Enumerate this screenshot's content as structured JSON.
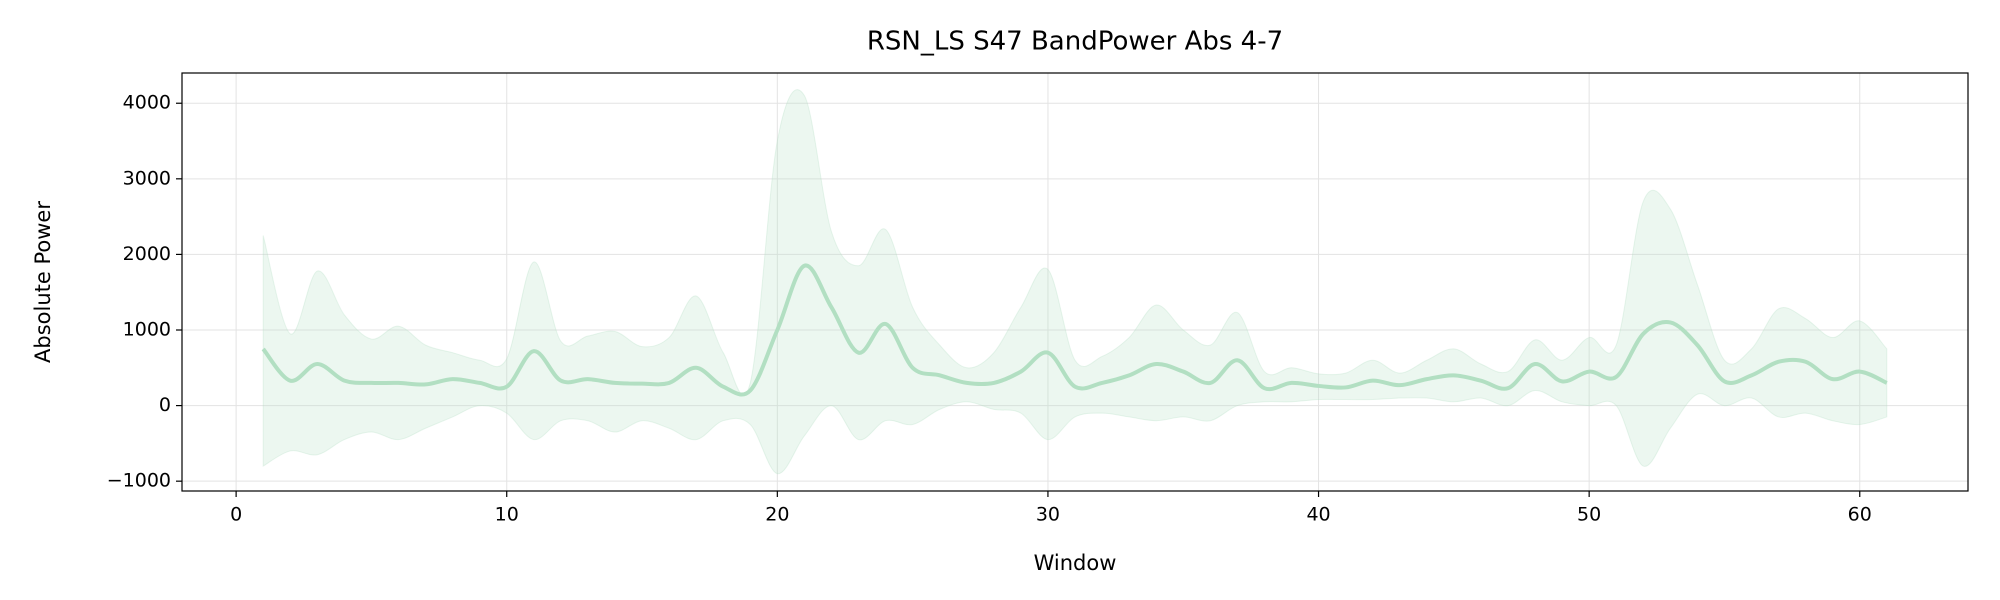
{
  "chart_data": {
    "type": "line",
    "title": "RSN_LS S47 BandPower Abs 4-7",
    "x_label": "Window",
    "y_label": "Absolute Power",
    "x": [
      1,
      2,
      3,
      4,
      5,
      6,
      7,
      8,
      9,
      10,
      11,
      12,
      13,
      14,
      15,
      16,
      17,
      18,
      19,
      20,
      21,
      22,
      23,
      24,
      25,
      26,
      27,
      28,
      29,
      30,
      31,
      32,
      33,
      34,
      35,
      36,
      37,
      38,
      39,
      40,
      41,
      42,
      43,
      44,
      45,
      46,
      47,
      48,
      49,
      50,
      51,
      52,
      53,
      54,
      55,
      56,
      57,
      58,
      59,
      60,
      61
    ],
    "series": [
      {
        "color": "#b2dfc2",
        "values": [
          750,
          330,
          550,
          330,
          300,
          300,
          280,
          350,
          300,
          250,
          720,
          330,
          350,
          300,
          290,
          300,
          500,
          250,
          200,
          1000,
          1850,
          1300,
          700,
          1080,
          500,
          400,
          300,
          300,
          450,
          700,
          250,
          300,
          400,
          550,
          450,
          300,
          600,
          230,
          300,
          260,
          240,
          330,
          270,
          350,
          400,
          330,
          230,
          550,
          320,
          450,
          380,
          950,
          1100,
          800,
          320,
          400,
          580,
          580,
          350,
          450,
          300
        ]
      }
    ],
    "band": {
      "color": "#b2dfc2",
      "upper": [
        2250,
        950,
        1780,
        1200,
        880,
        1050,
        800,
        700,
        600,
        620,
        1900,
        850,
        920,
        980,
        780,
        900,
        1450,
        700,
        300,
        3500,
        4100,
        2300,
        1850,
        2330,
        1300,
        800,
        500,
        700,
        1300,
        1800,
        600,
        650,
        900,
        1330,
        1000,
        800,
        1230,
        450,
        500,
        420,
        430,
        600,
        430,
        600,
        750,
        550,
        450,
        870,
        600,
        900,
        800,
        2700,
        2600,
        1600,
        600,
        750,
        1280,
        1150,
        900,
        1120,
        750
      ],
      "lower": [
        -800,
        -600,
        -650,
        -450,
        -350,
        -450,
        -300,
        -150,
        0,
        -100,
        -450,
        -200,
        -200,
        -350,
        -200,
        -300,
        -450,
        -200,
        -250,
        -900,
        -400,
        0,
        -450,
        -200,
        -250,
        -50,
        50,
        -50,
        -100,
        -450,
        -150,
        -100,
        -150,
        -200,
        -150,
        -200,
        0,
        50,
        50,
        80,
        80,
        80,
        100,
        100,
        50,
        100,
        0,
        200,
        50,
        0,
        0,
        -800,
        -300,
        150,
        0,
        100,
        -150,
        -100,
        -200,
        -250,
        -150
      ]
    },
    "xlim": [
      -2,
      64
    ],
    "ylim": [
      -1130,
      4400
    ],
    "xticks": [
      0,
      10,
      20,
      30,
      40,
      50,
      60
    ],
    "yticks": [
      {
        "value": -1000,
        "label": "−1000"
      },
      0,
      1000,
      2000,
      3000,
      4000
    ],
    "grid": true
  }
}
